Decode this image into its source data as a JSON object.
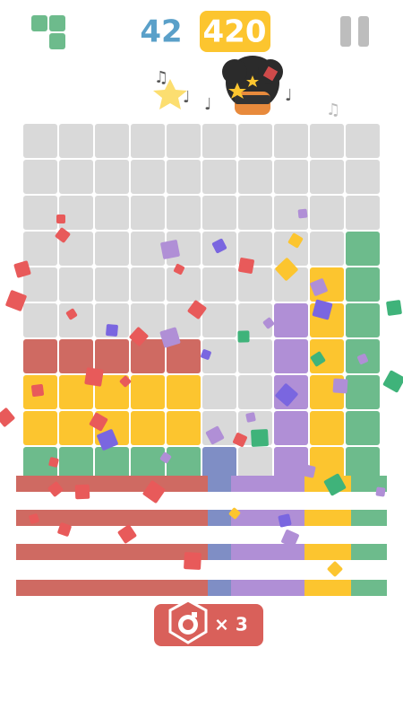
{
  "score": {
    "lines": "42",
    "points": "420"
  },
  "bomb": {
    "count": "× 3"
  }
}
